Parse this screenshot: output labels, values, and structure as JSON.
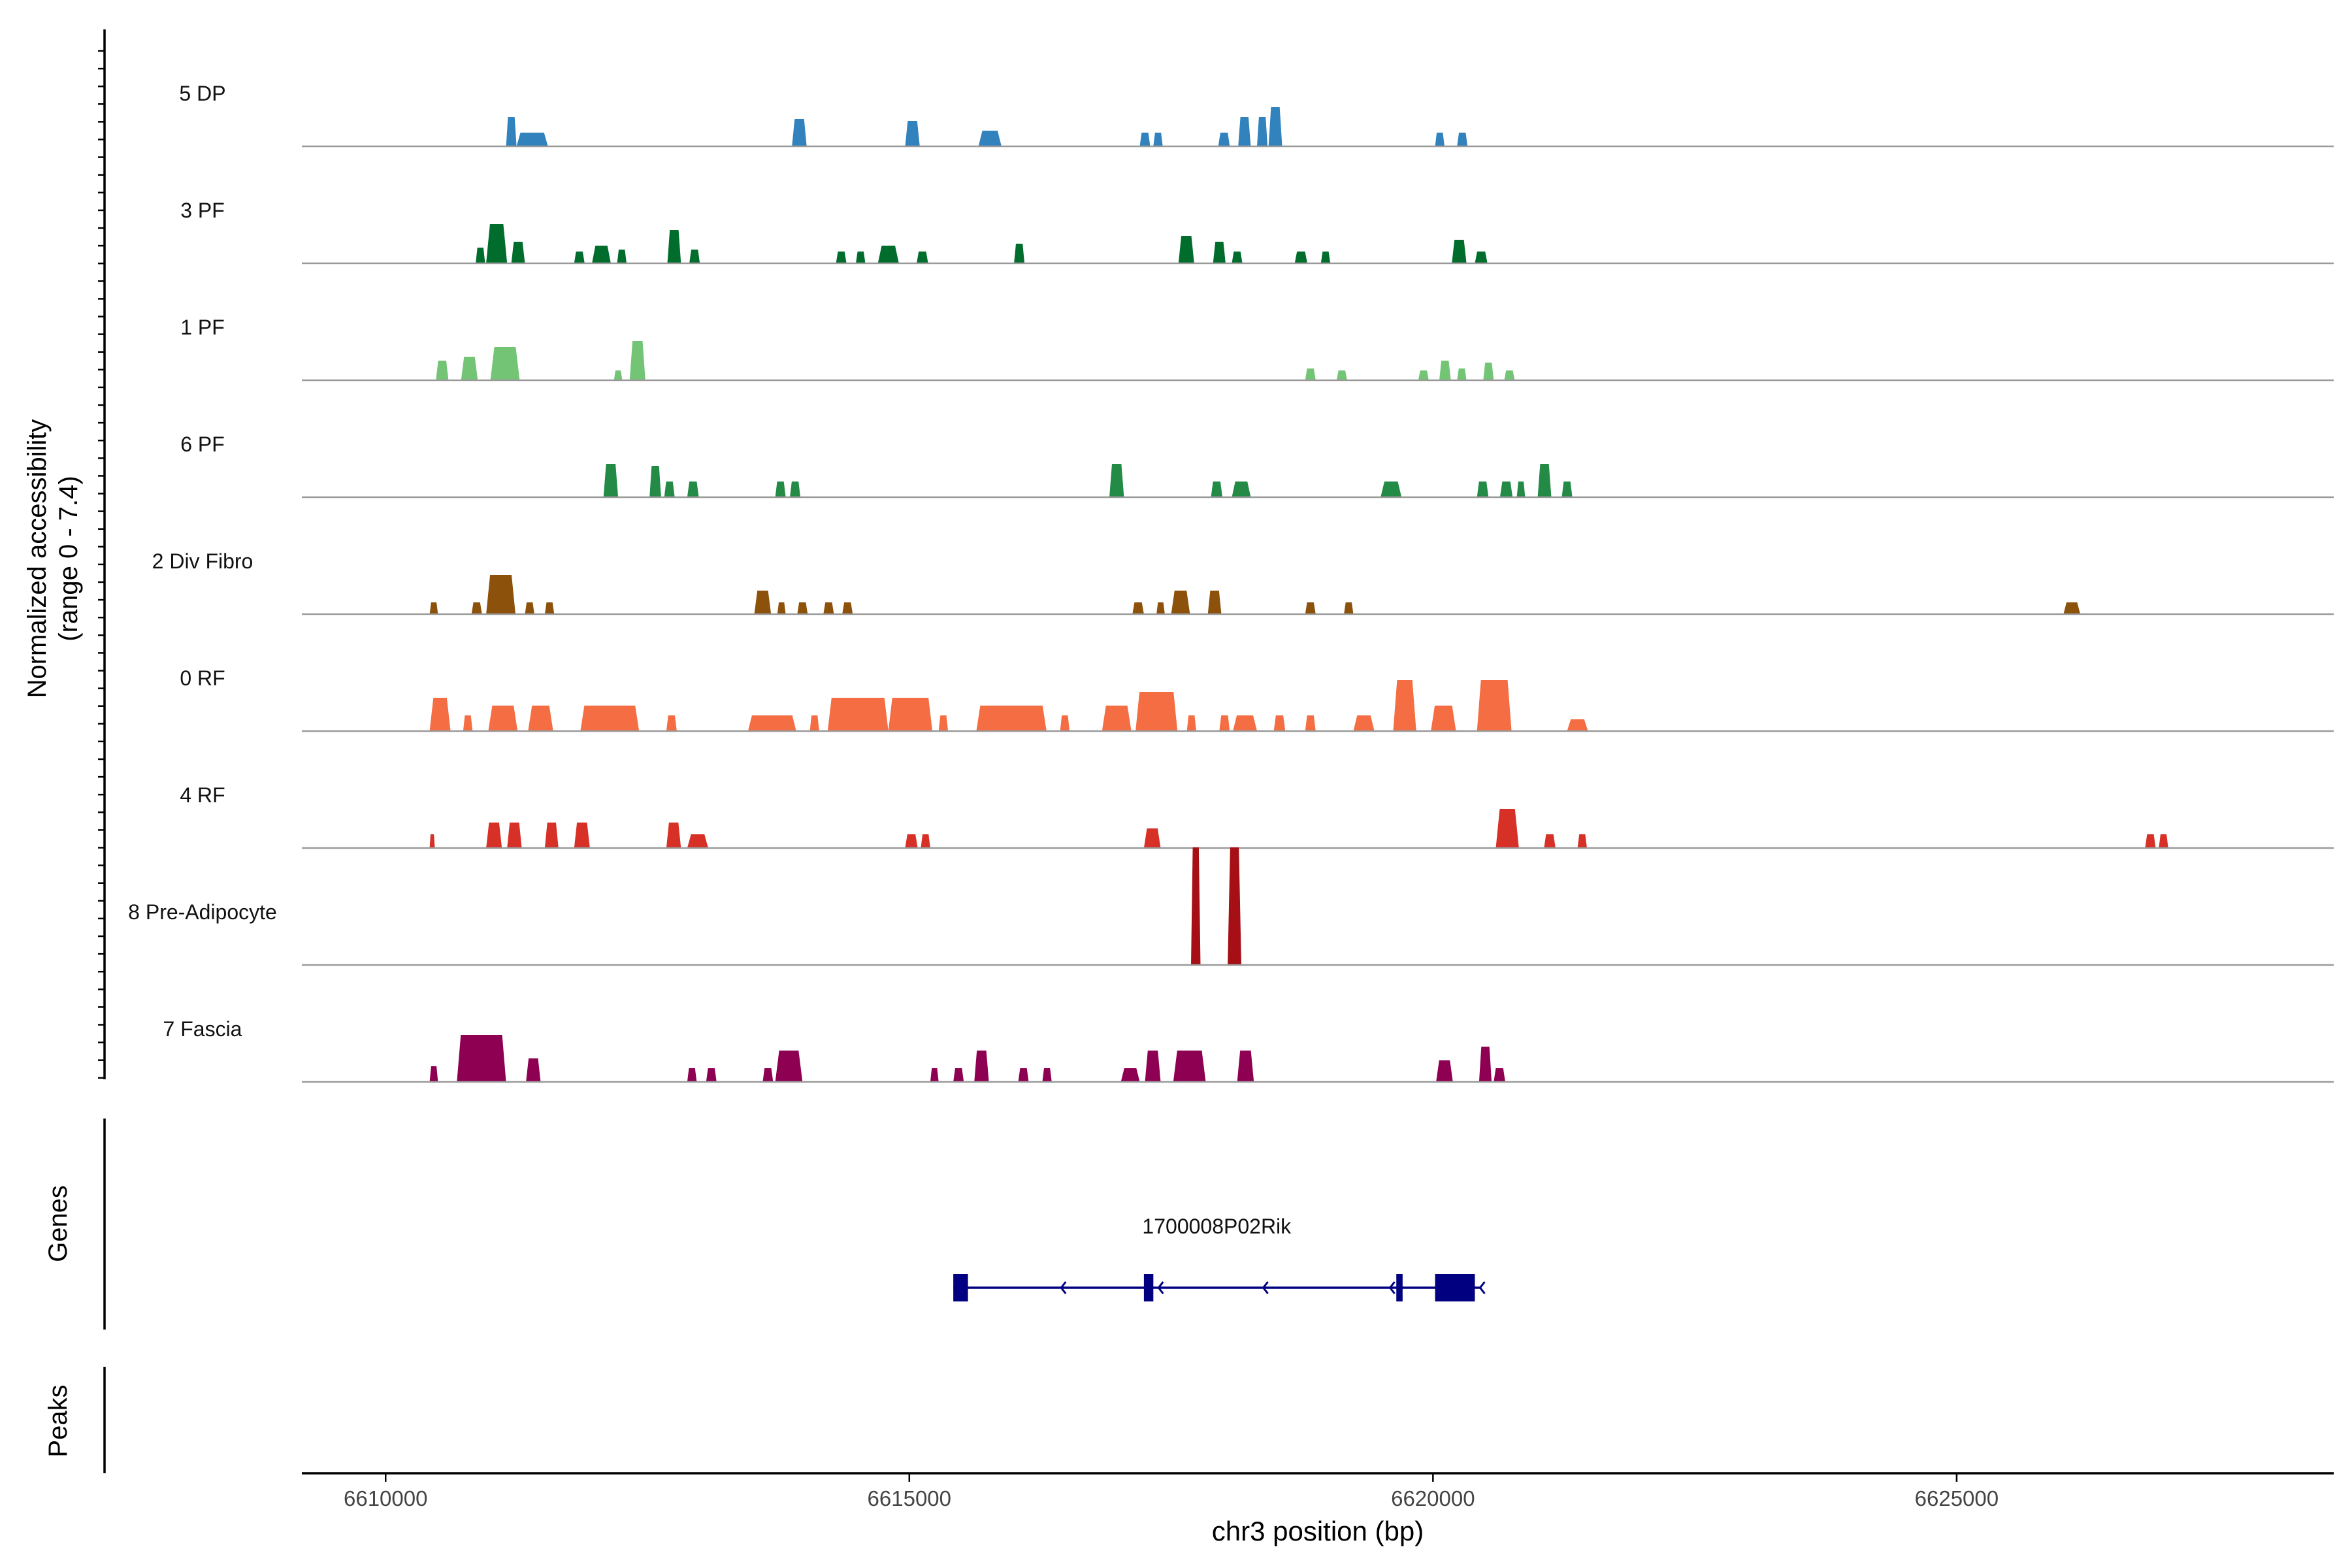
{
  "chart_data": {
    "type": "coverage",
    "chromosome": "chr3",
    "x_range": [
      6609200,
      6628600
    ],
    "xlabel": "chr3 position (bp)",
    "xticks": [
      6610000,
      6615000,
      6620000,
      6625000
    ],
    "xtick_labels": [
      "6610000",
      "6615000",
      "6620000",
      "6625000"
    ],
    "ylabel_line1": "Normalized accessibility",
    "ylabel_line2": "(range 0 - 7.4)",
    "y_range": [
      0,
      7.4
    ],
    "tracks": [
      {
        "name": "5 DP",
        "color": "#3182BD",
        "peaks": [
          [
            6611150,
            6611250,
            0.75
          ],
          [
            6611250,
            6611550,
            0.35
          ],
          [
            6613880,
            6614020,
            0.7
          ],
          [
            6614960,
            6615100,
            0.65
          ],
          [
            6615660,
            6615880,
            0.4
          ],
          [
            6617200,
            6617300,
            0.35
          ],
          [
            6617330,
            6617420,
            0.35
          ],
          [
            6617950,
            6618060,
            0.35
          ],
          [
            6618140,
            6618260,
            0.75
          ],
          [
            6618320,
            6618420,
            0.75
          ],
          [
            6618430,
            6618560,
            1.0
          ],
          [
            6620020,
            6620110,
            0.35
          ],
          [
            6620230,
            6620330,
            0.35
          ]
        ]
      },
      {
        "name": "3 PF",
        "color": "#006D2C",
        "peaks": [
          [
            6610860,
            6610950,
            0.4
          ],
          [
            6610960,
            6611160,
            1.0
          ],
          [
            6611200,
            6611330,
            0.55
          ],
          [
            6611800,
            6611900,
            0.3
          ],
          [
            6611970,
            6612150,
            0.45
          ],
          [
            6612210,
            6612300,
            0.35
          ],
          [
            6612690,
            6612820,
            0.85
          ],
          [
            6612900,
            6613000,
            0.35
          ],
          [
            6614300,
            6614400,
            0.3
          ],
          [
            6614490,
            6614580,
            0.3
          ],
          [
            6614700,
            6614900,
            0.45
          ],
          [
            6615070,
            6615180,
            0.3
          ],
          [
            6616000,
            6616100,
            0.5
          ],
          [
            6617570,
            6617720,
            0.7
          ],
          [
            6617900,
            6618020,
            0.55
          ],
          [
            6618080,
            6618180,
            0.3
          ],
          [
            6618680,
            6618800,
            0.3
          ],
          [
            6618930,
            6619020,
            0.3
          ],
          [
            6620180,
            6620320,
            0.6
          ],
          [
            6620400,
            6620520,
            0.3
          ]
        ]
      },
      {
        "name": "1 PF",
        "color": "#74C476",
        "peaks": [
          [
            6610480,
            6610600,
            0.5
          ],
          [
            6610720,
            6610880,
            0.6
          ],
          [
            6611000,
            6611280,
            0.85
          ],
          [
            6612180,
            6612260,
            0.25
          ],
          [
            6612330,
            6612480,
            1.0
          ],
          [
            6618780,
            6618880,
            0.3
          ],
          [
            6619080,
            6619180,
            0.25
          ],
          [
            6619860,
            6619960,
            0.25
          ],
          [
            6620060,
            6620170,
            0.5
          ],
          [
            6620230,
            6620320,
            0.3
          ],
          [
            6620480,
            6620580,
            0.45
          ],
          [
            6620680,
            6620780,
            0.25
          ]
        ]
      },
      {
        "name": "6 PF",
        "color": "#238B45",
        "peaks": [
          [
            6612080,
            6612220,
            0.85
          ],
          [
            6612520,
            6612630,
            0.8
          ],
          [
            6612660,
            6612760,
            0.4
          ],
          [
            6612880,
            6612990,
            0.4
          ],
          [
            6613720,
            6613820,
            0.4
          ],
          [
            6613860,
            6613960,
            0.4
          ],
          [
            6616910,
            6617050,
            0.85
          ],
          [
            6617880,
            6617990,
            0.4
          ],
          [
            6618080,
            6618260,
            0.4
          ],
          [
            6619500,
            6619700,
            0.4
          ],
          [
            6620420,
            6620530,
            0.4
          ],
          [
            6620640,
            6620760,
            0.4
          ],
          [
            6620800,
            6620880,
            0.4
          ],
          [
            6621000,
            6621130,
            0.85
          ],
          [
            6621230,
            6621330,
            0.4
          ]
        ]
      },
      {
        "name": "2 Div Fibro",
        "color": "#8C510A",
        "peaks": [
          [
            6610420,
            6610500,
            0.3
          ],
          [
            6610820,
            6610920,
            0.3
          ],
          [
            6610960,
            6611240,
            1.0
          ],
          [
            6611330,
            6611420,
            0.3
          ],
          [
            6611520,
            6611610,
            0.3
          ],
          [
            6613520,
            6613680,
            0.6
          ],
          [
            6613740,
            6613820,
            0.3
          ],
          [
            6613930,
            6614030,
            0.3
          ],
          [
            6614180,
            6614280,
            0.3
          ],
          [
            6614360,
            6614460,
            0.3
          ],
          [
            6617130,
            6617240,
            0.3
          ],
          [
            6617360,
            6617440,
            0.3
          ],
          [
            6617500,
            6617680,
            0.6
          ],
          [
            6617850,
            6617980,
            0.6
          ],
          [
            6618780,
            6618880,
            0.3
          ],
          [
            6619150,
            6619240,
            0.3
          ],
          [
            6626020,
            6626180,
            0.3
          ]
        ]
      },
      {
        "name": "0 RF",
        "color": "#F46D43",
        "peaks": [
          [
            6610420,
            6610620,
            0.85
          ],
          [
            6610740,
            6610830,
            0.4
          ],
          [
            6610980,
            6611260,
            0.65
          ],
          [
            6611360,
            6611600,
            0.65
          ],
          [
            6611860,
            6612420,
            0.65
          ],
          [
            6612680,
            6612780,
            0.4
          ],
          [
            6613460,
            6613920,
            0.4
          ],
          [
            6614050,
            6614140,
            0.4
          ],
          [
            6614220,
            6614800,
            0.85
          ],
          [
            6614800,
            6615220,
            0.85
          ],
          [
            6615280,
            6615370,
            0.4
          ],
          [
            6615640,
            6616310,
            0.65
          ],
          [
            6616440,
            6616530,
            0.4
          ],
          [
            6616840,
            6617120,
            0.65
          ],
          [
            6617160,
            6617560,
            1.0
          ],
          [
            6617650,
            6617740,
            0.4
          ],
          [
            6617960,
            6618060,
            0.4
          ],
          [
            6618090,
            6618320,
            0.4
          ],
          [
            6618480,
            6618590,
            0.4
          ],
          [
            6618780,
            6618880,
            0.4
          ],
          [
            6619240,
            6619440,
            0.4
          ],
          [
            6619620,
            6619840,
            1.3
          ],
          [
            6619980,
            6620220,
            0.65
          ],
          [
            6620420,
            6620750,
            1.3
          ],
          [
            6621280,
            6621480,
            0.3
          ]
        ]
      },
      {
        "name": "4 RF",
        "color": "#D73027",
        "peaks": [
          [
            6610420,
            6610470,
            0.35
          ],
          [
            6610960,
            6611110,
            0.65
          ],
          [
            6611160,
            6611300,
            0.65
          ],
          [
            6611520,
            6611650,
            0.65
          ],
          [
            6611800,
            6611950,
            0.65
          ],
          [
            6612680,
            6612820,
            0.65
          ],
          [
            6612880,
            6613080,
            0.35
          ],
          [
            6614960,
            6615080,
            0.35
          ],
          [
            6615110,
            6615200,
            0.35
          ],
          [
            6617240,
            6617400,
            0.5
          ],
          [
            6620600,
            6620820,
            1.0
          ],
          [
            6621060,
            6621170,
            0.35
          ],
          [
            6621380,
            6621470,
            0.35
          ],
          [
            6626800,
            6626900,
            0.35
          ],
          [
            6626930,
            6627020,
            0.35
          ]
        ]
      },
      {
        "name": "8 Pre-Adipocyte",
        "color": "#A50F15",
        "peaks": [
          [
            6617690,
            6617780,
            3.0
          ],
          [
            6618040,
            6618170,
            3.0
          ]
        ]
      },
      {
        "name": "7 Fascia",
        "color": "#8E0152",
        "peaks": [
          [
            6610420,
            6610500,
            0.4
          ],
          [
            6610680,
            6611150,
            1.2
          ],
          [
            6611340,
            6611480,
            0.6
          ],
          [
            6612880,
            6612970,
            0.35
          ],
          [
            6613060,
            6613160,
            0.35
          ],
          [
            6613600,
            6613700,
            0.35
          ],
          [
            6613720,
            6613980,
            0.8
          ],
          [
            6615200,
            6615280,
            0.35
          ],
          [
            6615420,
            6615520,
            0.35
          ],
          [
            6615620,
            6615760,
            0.8
          ],
          [
            6616040,
            6616140,
            0.35
          ],
          [
            6616270,
            6616360,
            0.35
          ],
          [
            6617020,
            6617200,
            0.35
          ],
          [
            6617250,
            6617400,
            0.8
          ],
          [
            6617520,
            6617830,
            0.8
          ],
          [
            6618130,
            6618290,
            0.8
          ],
          [
            6620030,
            6620190,
            0.55
          ],
          [
            6620440,
            6620560,
            0.9
          ],
          [
            6620580,
            6620690,
            0.35
          ]
        ]
      }
    ],
    "genes": {
      "title": "Genes",
      "gene_name": "1700008P02Rik",
      "start": 6615420,
      "end": 6620450,
      "strand": "-",
      "color": "#000080",
      "exons": [
        [
          6615420,
          6615560
        ],
        [
          6617240,
          6617330
        ],
        [
          6619650,
          6619710
        ],
        [
          6620020,
          6620400
        ]
      ],
      "arrows": [
        6616450,
        6617380,
        6618380,
        6619590,
        6620450
      ]
    },
    "peaks_panel": {
      "title": "Peaks"
    }
  }
}
